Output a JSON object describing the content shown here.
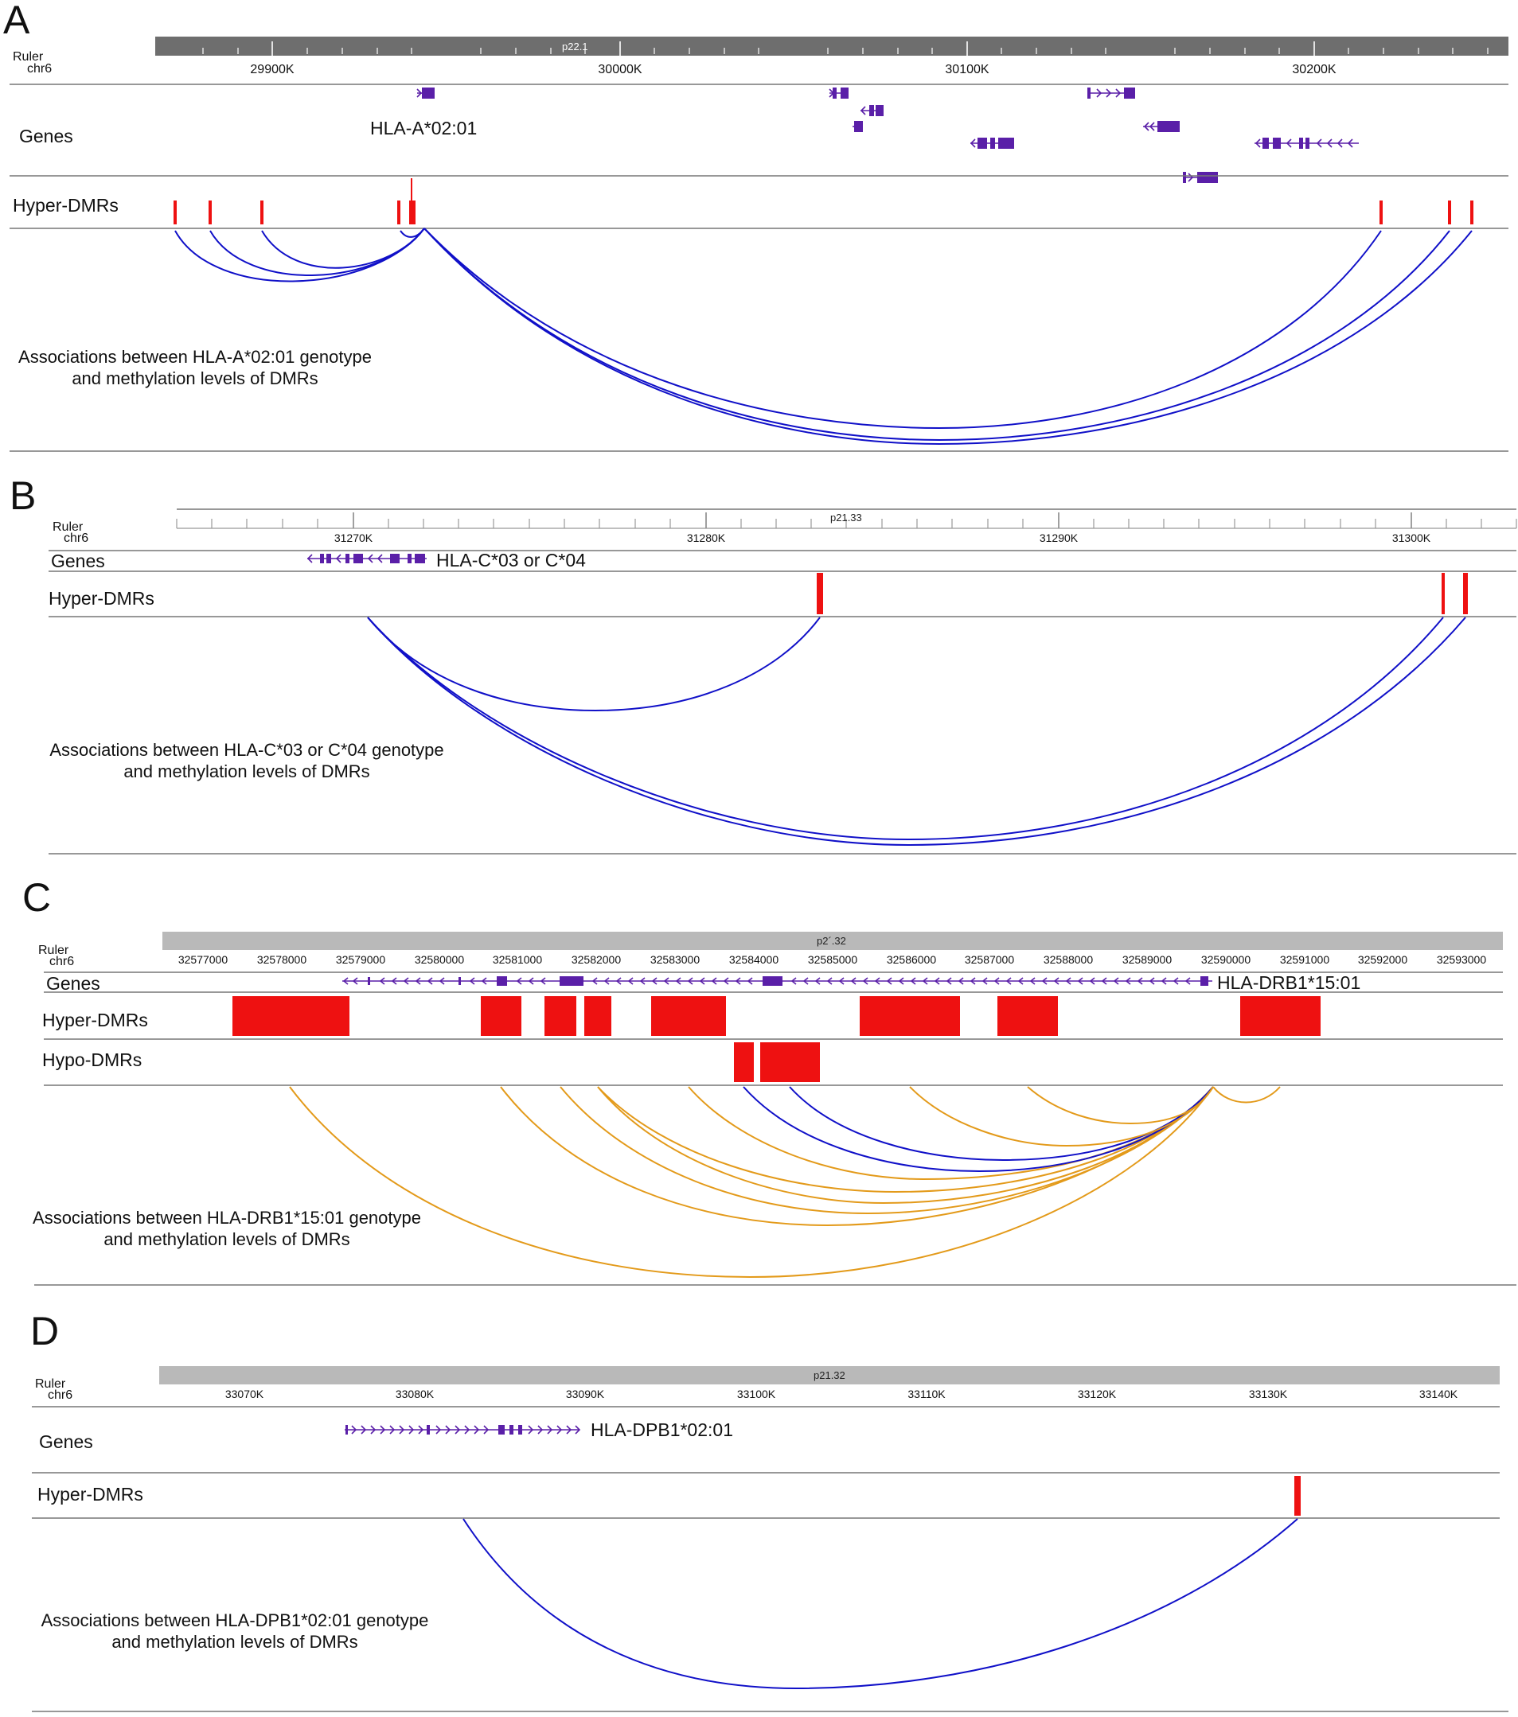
{
  "colors": {
    "hyper_dmr": "#ee1111",
    "gene": "#5a1fa8",
    "arc_blue": "#1010c8",
    "arc_orange": "#e39a1a",
    "ruler_dark": "#6e6e6e",
    "ruler_light": "#b9b9b9"
  },
  "panels": {
    "A": {
      "letter": "A",
      "ruler_label": "Ruler",
      "chr_label": "chr6",
      "band": "p22.1",
      "ticks": [
        "29900K",
        "30000K",
        "30100K",
        "30200K"
      ],
      "genes_label": "Genes",
      "gene_name": "HLA-A*02:01",
      "hyper_label": "Hyper-DMRs",
      "assoc_line1": "Associations between HLA-A*02:01 genotype",
      "assoc_line2": "and methylation levels of DMRs"
    },
    "B": {
      "letter": "B",
      "ruler_label": "Ruler",
      "chr_label": "chr6",
      "band": "p21.33",
      "ticks": [
        "31270K",
        "31280K",
        "31290K",
        "31300K"
      ],
      "genes_label": "Genes",
      "gene_name": "HLA-C*03 or C*04",
      "hyper_label": "Hyper-DMRs",
      "assoc_line1": "Associations between HLA-C*03 or C*04 genotype",
      "assoc_line2": "and methylation levels of DMRs"
    },
    "C": {
      "letter": "C",
      "ruler_label": "Ruler",
      "chr_label": "chr6",
      "band": "p2´.32",
      "ticks": [
        "32577000",
        "32578000",
        "32579000",
        "32580000",
        "32581000",
        "32582000",
        "32583000",
        "32584000",
        "32585000",
        "32586000",
        "32587000",
        "32588000",
        "32589000",
        "32590000",
        "32591000",
        "32592000",
        "32593000"
      ],
      "genes_label": "Genes",
      "gene_name": "HLA-DRB1*15:01",
      "hyper_label": "Hyper-DMRs",
      "hypo_label": "Hypo-DMRs",
      "assoc_line1": "Associations between HLA-DRB1*15:01 genotype",
      "assoc_line2": "and methylation levels of DMRs"
    },
    "D": {
      "letter": "D",
      "ruler_label": "Ruler",
      "chr_label": "chr6",
      "band": "p21.32",
      "ticks": [
        "33070K",
        "33080K",
        "33090K",
        "33100K",
        "33110K",
        "33120K",
        "33130K",
        "33140K"
      ],
      "genes_label": "Genes",
      "gene_name": "HLA-DPB1*02:01",
      "hyper_label": "Hyper-DMRs",
      "assoc_line1": "Associations between HLA-DPB1*02:01 genotype",
      "assoc_line2": "and methylation levels of DMRs"
    }
  }
}
